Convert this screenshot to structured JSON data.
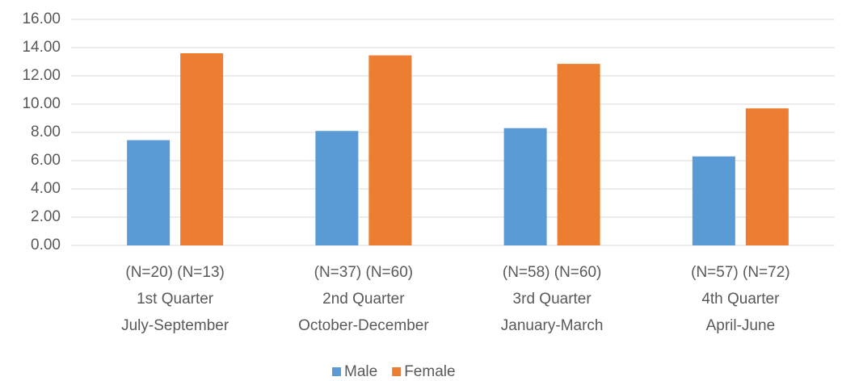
{
  "chart_data": {
    "type": "bar",
    "categories": [
      [
        "(N=20) (N=13)",
        "1st Quarter",
        "July-September"
      ],
      [
        "(N=37) (N=60)",
        "2nd Quarter",
        "October-December"
      ],
      [
        "(N=58) (N=60)",
        "3rd Quarter",
        "January-March"
      ],
      [
        "(N=57) (N=72)",
        "4th Quarter",
        "April-June"
      ]
    ],
    "series": [
      {
        "name": "Male",
        "color": "#5b9bd5",
        "values": [
          7.45,
          8.1,
          8.3,
          6.3
        ]
      },
      {
        "name": "Female",
        "color": "#ed7d31",
        "values": [
          13.6,
          13.45,
          12.85,
          9.7
        ]
      }
    ],
    "ylim": [
      0,
      16
    ],
    "yticks": [
      {
        "value": 0,
        "label": "0.00"
      },
      {
        "value": 2,
        "label": "2.00"
      },
      {
        "value": 4,
        "label": "4.00"
      },
      {
        "value": 6,
        "label": "6.00"
      },
      {
        "value": 8,
        "label": "8.00"
      },
      {
        "value": 10,
        "label": "10.00"
      },
      {
        "value": 12,
        "label": "12.00"
      },
      {
        "value": 14,
        "label": "14.00"
      },
      {
        "value": 16,
        "label": "16.00"
      }
    ],
    "grid": true,
    "legend": "bottom"
  }
}
